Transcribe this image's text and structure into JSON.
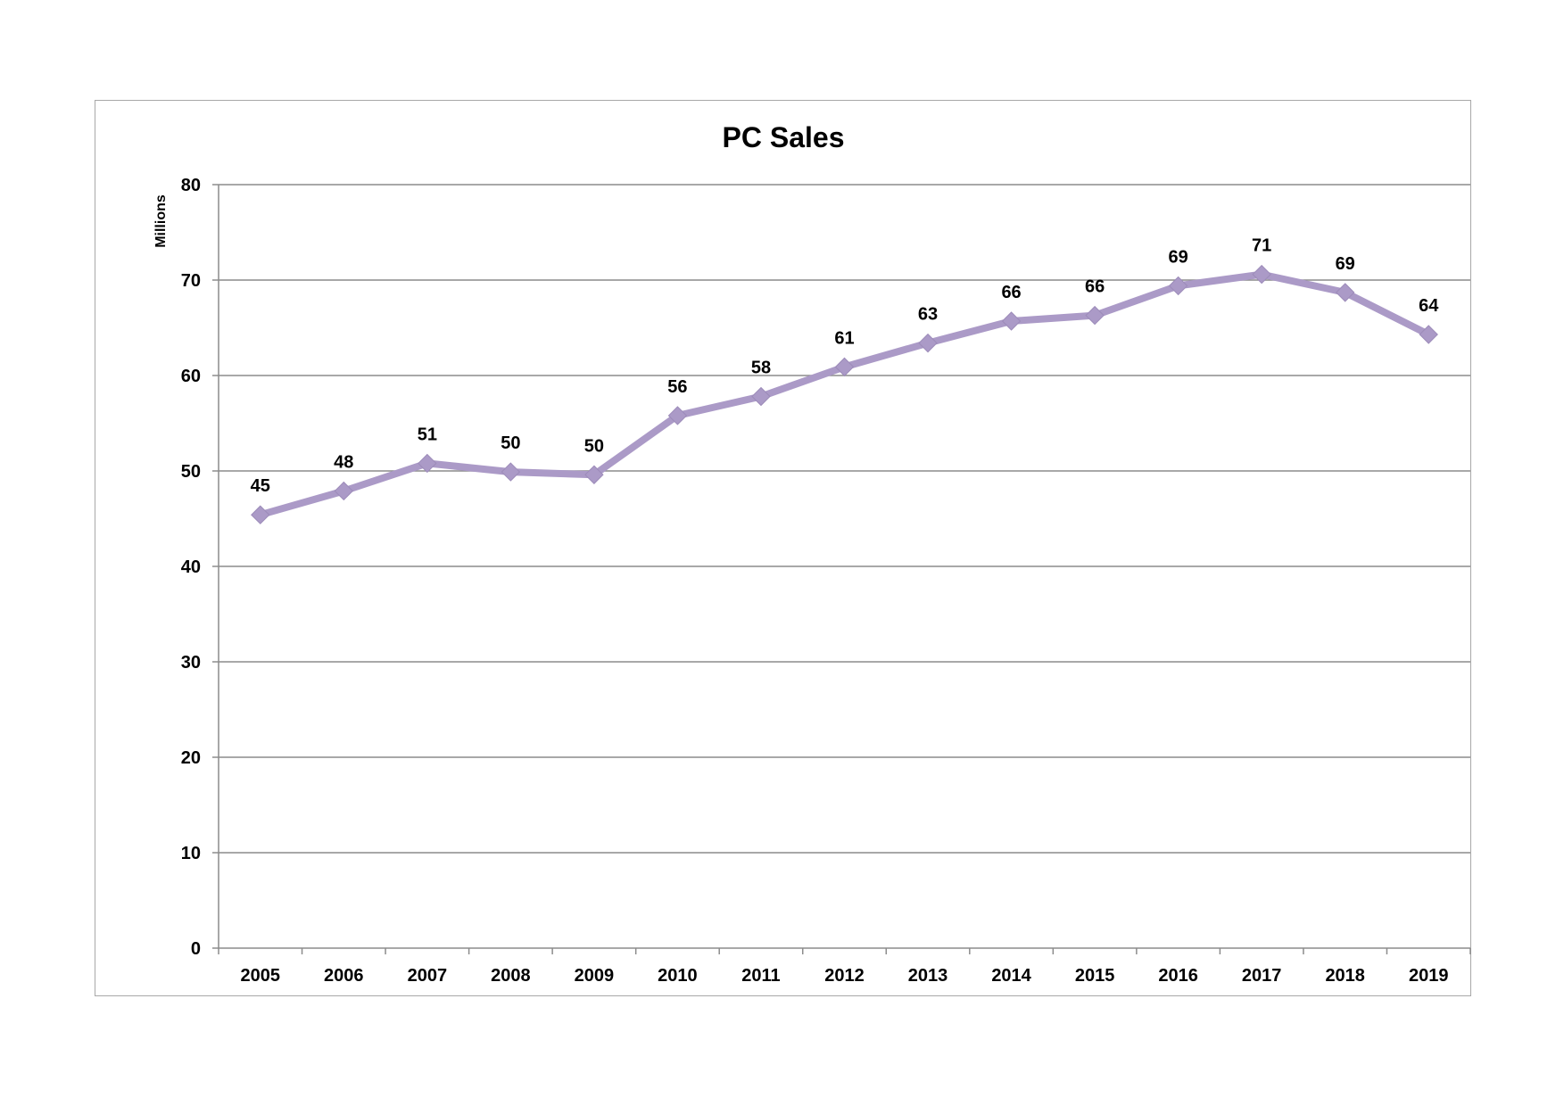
{
  "chart_data": {
    "type": "line",
    "title": "PC Sales",
    "xlabel": "",
    "ylabel": "Millions",
    "ylim": [
      0,
      80
    ],
    "yticks": [
      "0",
      "10",
      "20",
      "30",
      "40",
      "50",
      "60",
      "70",
      "80"
    ],
    "categories": [
      "2005",
      "2006",
      "2007",
      "2008",
      "2009",
      "2010",
      "2011",
      "2012",
      "2013",
      "2014",
      "2015",
      "2016",
      "2017",
      "2018",
      "2019"
    ],
    "series": [
      {
        "values": [
          45.4,
          47.9,
          50.8,
          49.9,
          49.6,
          55.8,
          57.8,
          60.9,
          63.4,
          65.7,
          66.3,
          69.4,
          70.6,
          68.7,
          64.3
        ],
        "labels": [
          "45",
          "48",
          "51",
          "50",
          "50",
          "56",
          "58",
          "61",
          "63",
          "66",
          "66",
          "69",
          "71",
          "69",
          "64"
        ],
        "color": "#ab9ac7",
        "marker": "diamond"
      }
    ],
    "grid": true,
    "legend": "none"
  }
}
